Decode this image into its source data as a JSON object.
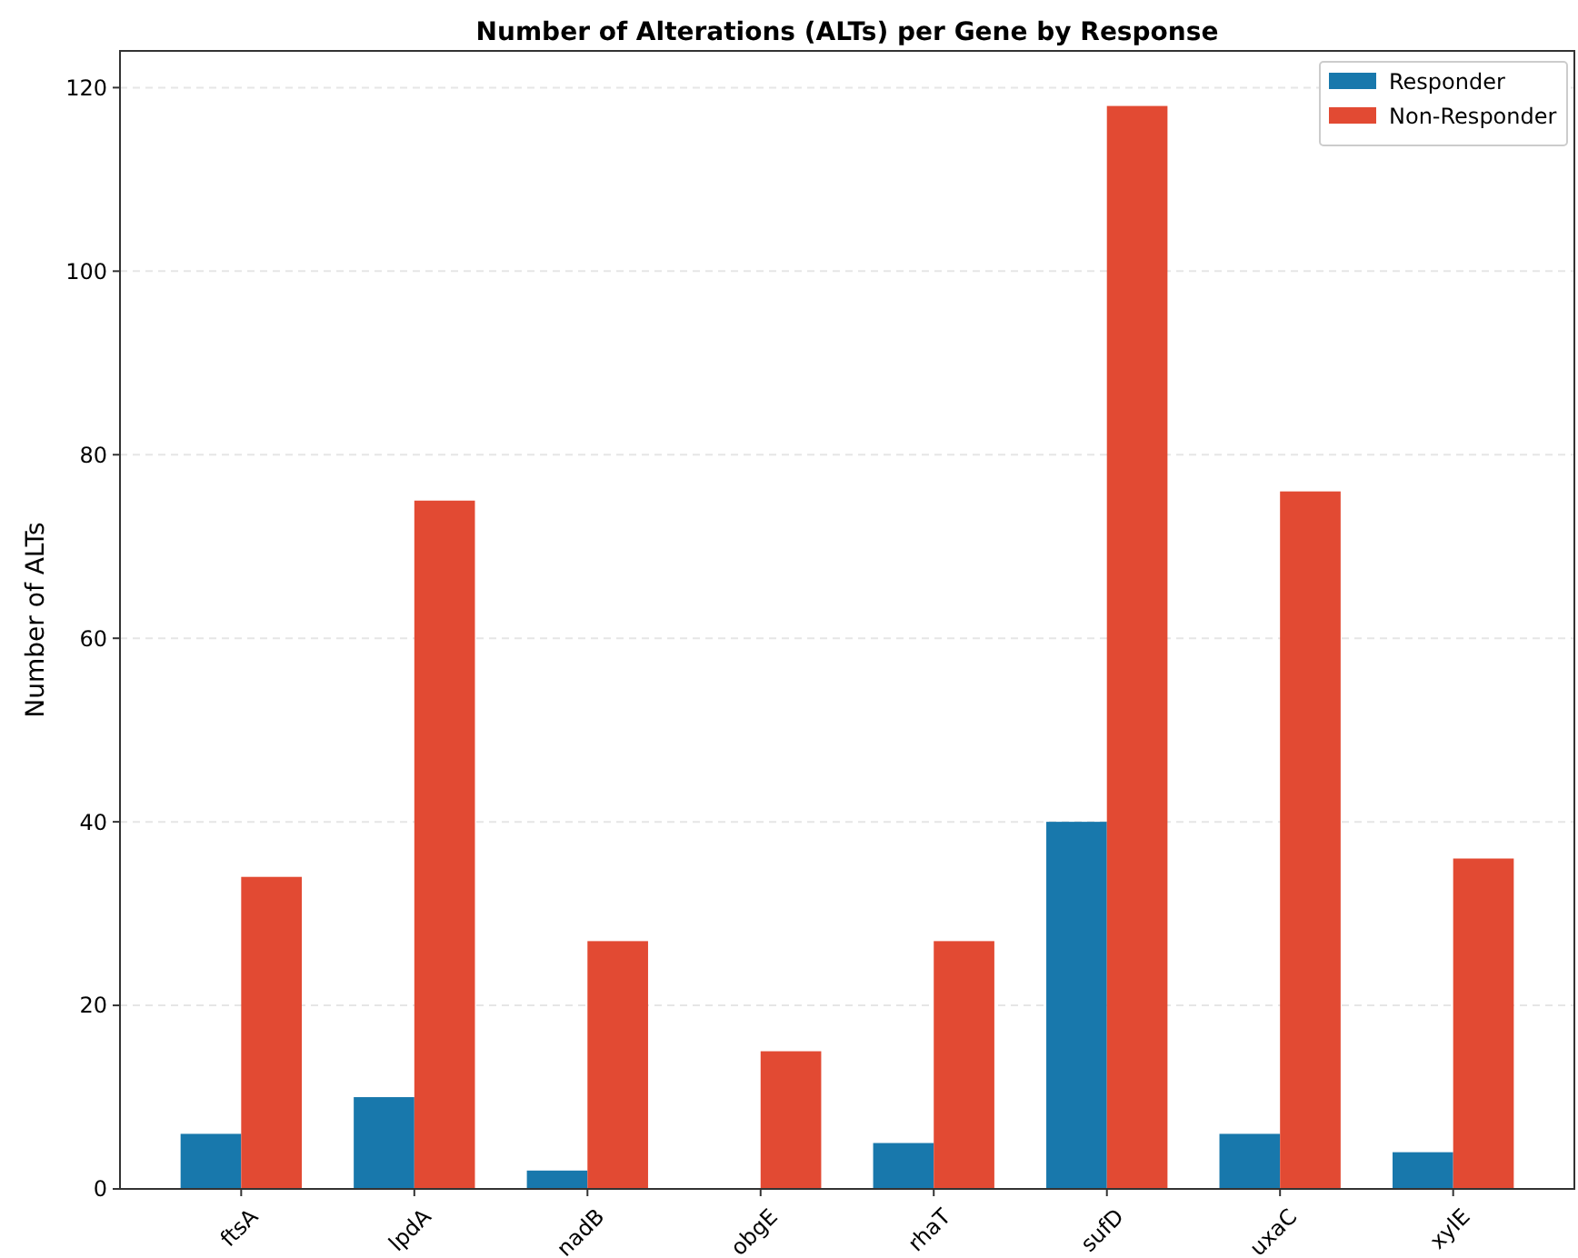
{
  "chart_data": {
    "type": "bar",
    "title": "Number of Alterations (ALTs) per Gene by Response",
    "ylabel": "Number of ALTs",
    "categories": [
      "ftsA",
      "lpdA",
      "nadB",
      "obgE",
      "rhaT",
      "sufD",
      "uxaC",
      "xylE"
    ],
    "series": [
      {
        "name": "Responder",
        "color": "#1878ac",
        "values": [
          6,
          10,
          2,
          0,
          5,
          40,
          6,
          4
        ]
      },
      {
        "name": "Non-Responder",
        "color": "#e24a33",
        "values": [
          34,
          75,
          27,
          15,
          27,
          118,
          76,
          36
        ]
      }
    ],
    "ylim": [
      0,
      124
    ],
    "yticks": [
      0,
      20,
      40,
      60,
      80,
      100,
      120
    ],
    "grid": "y",
    "legend": "top right"
  }
}
